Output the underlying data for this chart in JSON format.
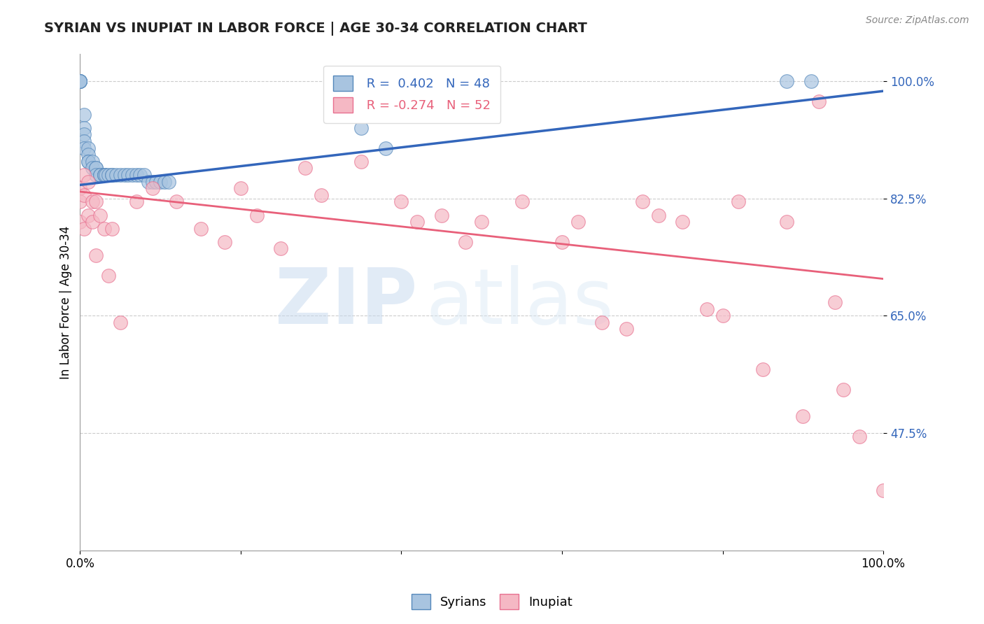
{
  "title": "SYRIAN VS INUPIAT IN LABOR FORCE | AGE 30-34 CORRELATION CHART",
  "source_text": "Source: ZipAtlas.com",
  "ylabel": "In Labor Force | Age 30-34",
  "xlim": [
    0.0,
    1.0
  ],
  "ylim": [
    0.3,
    1.04
  ],
  "yticks": [
    0.475,
    0.65,
    0.825,
    1.0
  ],
  "ytick_labels": [
    "47.5%",
    "65.0%",
    "82.5%",
    "100.0%"
  ],
  "xticks": [
    0.0,
    0.2,
    0.4,
    0.6,
    0.8,
    1.0
  ],
  "xtick_labels": [
    "0.0%",
    "",
    "",
    "",
    "",
    "100.0%"
  ],
  "blue_R": 0.402,
  "blue_N": 48,
  "pink_R": -0.274,
  "pink_N": 52,
  "blue_color": "#a8c4e0",
  "pink_color": "#f5b8c4",
  "blue_edge_color": "#5588bb",
  "pink_edge_color": "#e87090",
  "blue_line_color": "#3366bb",
  "pink_line_color": "#e8607a",
  "watermark_zip": "ZIP",
  "watermark_atlas": "atlas",
  "legend_label_blue": "Syrians",
  "legend_label_pink": "Inupiat",
  "blue_x": [
    0.0,
    0.0,
    0.0,
    0.0,
    0.0,
    0.0,
    0.0,
    0.005,
    0.005,
    0.005,
    0.005,
    0.005,
    0.01,
    0.01,
    0.01,
    0.01,
    0.015,
    0.015,
    0.02,
    0.02,
    0.02,
    0.025,
    0.025,
    0.03,
    0.03,
    0.03,
    0.032,
    0.035,
    0.04,
    0.04,
    0.045,
    0.05,
    0.055,
    0.06,
    0.065,
    0.07,
    0.075,
    0.08,
    0.085,
    0.09,
    0.095,
    0.1,
    0.105,
    0.11,
    0.35,
    0.38,
    0.88,
    0.91
  ],
  "blue_y": [
    1.0,
    1.0,
    1.0,
    1.0,
    1.0,
    1.0,
    1.0,
    0.95,
    0.93,
    0.92,
    0.91,
    0.9,
    0.9,
    0.89,
    0.88,
    0.88,
    0.88,
    0.87,
    0.87,
    0.87,
    0.86,
    0.86,
    0.86,
    0.86,
    0.86,
    0.86,
    0.86,
    0.86,
    0.86,
    0.86,
    0.86,
    0.86,
    0.86,
    0.86,
    0.86,
    0.86,
    0.86,
    0.86,
    0.85,
    0.85,
    0.85,
    0.85,
    0.85,
    0.85,
    0.93,
    0.9,
    1.0,
    1.0
  ],
  "pink_x": [
    0.0,
    0.0,
    0.0,
    0.005,
    0.005,
    0.005,
    0.01,
    0.01,
    0.015,
    0.015,
    0.02,
    0.02,
    0.025,
    0.03,
    0.035,
    0.04,
    0.05,
    0.07,
    0.09,
    0.12,
    0.15,
    0.18,
    0.2,
    0.22,
    0.25,
    0.28,
    0.3,
    0.35,
    0.4,
    0.42,
    0.45,
    0.48,
    0.5,
    0.55,
    0.6,
    0.62,
    0.65,
    0.68,
    0.7,
    0.72,
    0.75,
    0.78,
    0.8,
    0.82,
    0.85,
    0.88,
    0.9,
    0.92,
    0.94,
    0.95,
    0.97,
    1.0
  ],
  "pink_y": [
    0.84,
    0.82,
    0.79,
    0.86,
    0.83,
    0.78,
    0.85,
    0.8,
    0.82,
    0.79,
    0.82,
    0.74,
    0.8,
    0.78,
    0.71,
    0.78,
    0.64,
    0.82,
    0.84,
    0.82,
    0.78,
    0.76,
    0.84,
    0.8,
    0.75,
    0.87,
    0.83,
    0.88,
    0.82,
    0.79,
    0.8,
    0.76,
    0.79,
    0.82,
    0.76,
    0.79,
    0.64,
    0.63,
    0.82,
    0.8,
    0.79,
    0.66,
    0.65,
    0.82,
    0.57,
    0.79,
    0.5,
    0.97,
    0.67,
    0.54,
    0.47,
    0.39
  ],
  "blue_trend_x": [
    0.0,
    1.0
  ],
  "blue_trend_y": [
    0.845,
    0.985
  ],
  "pink_trend_x": [
    0.0,
    1.0
  ],
  "pink_trend_y": [
    0.835,
    0.705
  ]
}
